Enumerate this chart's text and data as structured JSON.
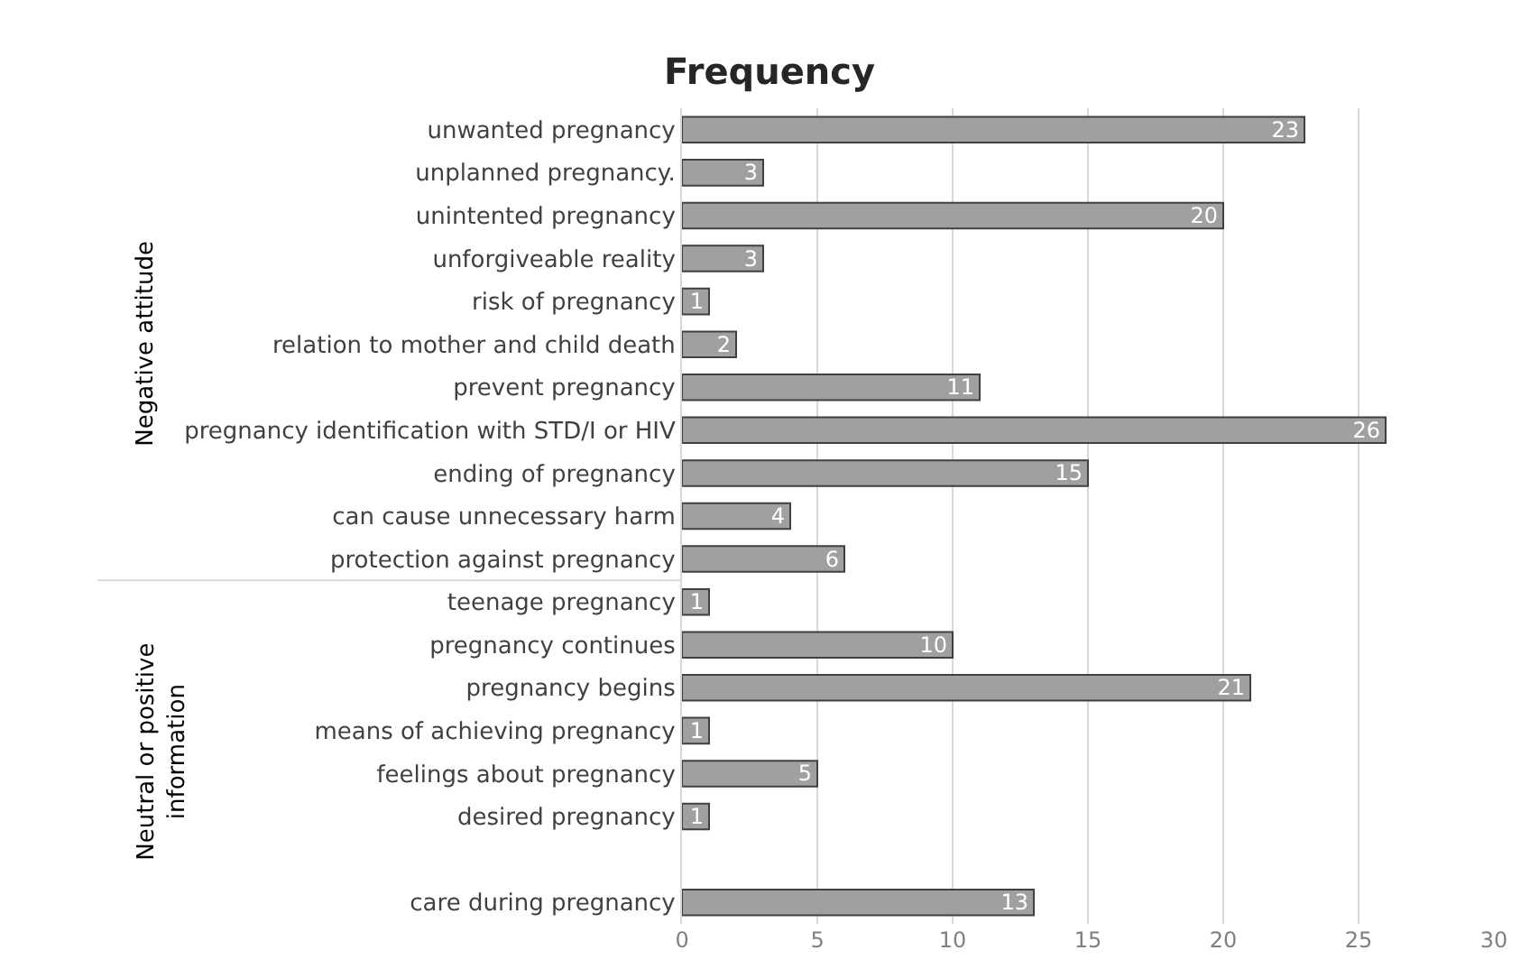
{
  "chart_data": {
    "type": "bar",
    "orientation": "horizontal",
    "title": "Frequency",
    "categories": [
      "unwanted pregnancy",
      "unplanned pregnancy.",
      "unintented pregnancy",
      "unforgiveable reality",
      "risk of pregnancy",
      "relation to mother and child death",
      "prevent pregnancy",
      "pregnancy identification with STD/I or HIV",
      "ending of pregnancy",
      "can cause unnecessary harm",
      "protection against pregnancy",
      "teenage pregnancy",
      "pregnancy continues",
      "pregnancy begins",
      "means of achieving pregnancy",
      "feelings about pregnancy",
      "desired pregnancy",
      null,
      "care during pregnancy"
    ],
    "values": [
      23,
      3,
      20,
      3,
      1,
      2,
      11,
      26,
      15,
      4,
      6,
      1,
      10,
      21,
      1,
      5,
      1,
      null,
      13
    ],
    "color": "#a0a0a0",
    "xlim": [
      0,
      30
    ],
    "xticks": [
      0,
      5,
      10,
      15,
      20,
      25,
      30
    ],
    "grid": "x",
    "data_labels": true,
    "annotations": [
      "Negative attitude",
      "Neutral or positive information"
    ]
  }
}
